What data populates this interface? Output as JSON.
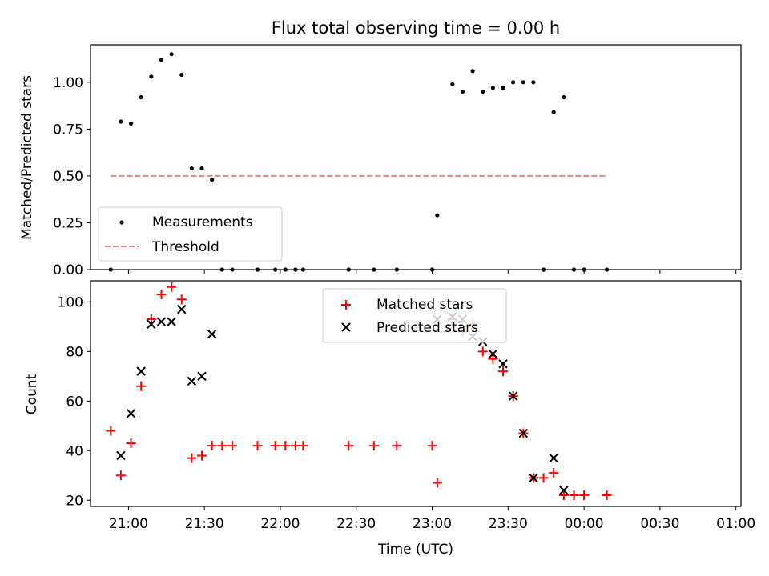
{
  "title": "Flux total observing time = 0.00 h",
  "chart_data": [
    {
      "type": "scatter",
      "ylabel": "Matched/Predicted stars",
      "xlabel": "",
      "ylim": [
        0,
        1.2
      ],
      "yticks": [
        0.0,
        0.25,
        0.5,
        0.75,
        1.0
      ],
      "ytick_labels": [
        "0.00",
        "0.25",
        "0.50",
        "0.75",
        "1.00"
      ],
      "legend": {
        "position": "lower-left",
        "entries": [
          "Measurements",
          "Threshold"
        ]
      },
      "series": [
        {
          "name": "Measurements",
          "marker": "dot",
          "color": "#000000",
          "points": [
            [
              "20:53",
              0.0
            ],
            [
              "20:57",
              0.79
            ],
            [
              "21:01",
              0.78
            ],
            [
              "21:05",
              0.92
            ],
            [
              "21:09",
              1.03
            ],
            [
              "21:13",
              1.12
            ],
            [
              "21:17",
              1.15
            ],
            [
              "21:21",
              1.04
            ],
            [
              "21:25",
              0.54
            ],
            [
              "21:29",
              0.54
            ],
            [
              "21:33",
              0.48
            ],
            [
              "21:37",
              0.0
            ],
            [
              "21:41",
              0.0
            ],
            [
              "21:51",
              0.0
            ],
            [
              "21:58",
              0.0
            ],
            [
              "22:02",
              0.0
            ],
            [
              "22:06",
              0.0
            ],
            [
              "22:09",
              0.0
            ],
            [
              "22:27",
              0.0
            ],
            [
              "22:37",
              0.0
            ],
            [
              "22:46",
              0.0
            ],
            [
              "23:00",
              0.0
            ],
            [
              "23:02",
              0.29
            ],
            [
              "23:08",
              0.99
            ],
            [
              "23:12",
              0.95
            ],
            [
              "23:16",
              1.06
            ],
            [
              "23:20",
              0.95
            ],
            [
              "23:24",
              0.97
            ],
            [
              "23:28",
              0.97
            ],
            [
              "23:32",
              1.0
            ],
            [
              "23:36",
              1.0
            ],
            [
              "23:40",
              1.0
            ],
            [
              "23:44",
              0.0
            ],
            [
              "23:48",
              0.84
            ],
            [
              "23:52",
              0.92
            ],
            [
              "23:56",
              0.0
            ],
            [
              "00:00",
              0.0
            ],
            [
              "00:09",
              0.0
            ]
          ]
        },
        {
          "name": "Threshold",
          "line_style": "dashed",
          "color": "#f08080",
          "points": [
            [
              "20:53",
              0.5
            ],
            [
              "00:09",
              0.5
            ]
          ]
        }
      ]
    },
    {
      "type": "scatter",
      "ylabel": "Count",
      "xlabel": "Time (UTC)",
      "ylim": [
        17.5,
        108.5
      ],
      "yticks": [
        20,
        40,
        60,
        80,
        100
      ],
      "ytick_labels": [
        "20",
        "40",
        "60",
        "80",
        "100"
      ],
      "xlim": [
        "20:45",
        "01:02"
      ],
      "xticks": [
        "21:00",
        "21:30",
        "22:00",
        "22:30",
        "23:00",
        "23:30",
        "00:00",
        "00:30",
        "01:00"
      ],
      "legend": {
        "position": "upper-center",
        "entries": [
          "Matched stars",
          "Predicted stars"
        ]
      },
      "series": [
        {
          "name": "Matched stars",
          "marker": "+",
          "color": "#ff0000",
          "points": [
            [
              "20:53",
              48
            ],
            [
              "20:57",
              30
            ],
            [
              "21:01",
              43
            ],
            [
              "21:05",
              66
            ],
            [
              "21:09",
              93
            ],
            [
              "21:13",
              103
            ],
            [
              "21:17",
              106
            ],
            [
              "21:21",
              101
            ],
            [
              "21:25",
              37
            ],
            [
              "21:29",
              38
            ],
            [
              "21:33",
              42
            ],
            [
              "21:37",
              42
            ],
            [
              "21:41",
              42
            ],
            [
              "21:51",
              42
            ],
            [
              "21:58",
              42
            ],
            [
              "22:02",
              42
            ],
            [
              "22:06",
              42
            ],
            [
              "22:09",
              42
            ],
            [
              "22:27",
              42
            ],
            [
              "22:37",
              42
            ],
            [
              "22:46",
              42
            ],
            [
              "23:00",
              42
            ],
            [
              "23:02",
              27
            ],
            [
              "23:08",
              93
            ],
            [
              "23:12",
              88
            ],
            [
              "23:16",
              91
            ],
            [
              "23:20",
              80
            ],
            [
              "23:24",
              77
            ],
            [
              "23:28",
              72
            ],
            [
              "23:32",
              62
            ],
            [
              "23:36",
              47
            ],
            [
              "23:40",
              29
            ],
            [
              "23:44",
              29
            ],
            [
              "23:48",
              31
            ],
            [
              "23:52",
              22
            ],
            [
              "23:56",
              22
            ],
            [
              "00:00",
              22
            ],
            [
              "00:09",
              22
            ]
          ]
        },
        {
          "name": "Predicted stars",
          "marker": "x",
          "color": "#000000",
          "points": [
            [
              "20:57",
              38
            ],
            [
              "21:01",
              55
            ],
            [
              "21:05",
              72
            ],
            [
              "21:09",
              91
            ],
            [
              "21:13",
              92
            ],
            [
              "21:17",
              92
            ],
            [
              "21:21",
              97
            ],
            [
              "21:25",
              68
            ],
            [
              "21:29",
              70
            ],
            [
              "21:33",
              87
            ],
            [
              "23:02",
              93
            ],
            [
              "23:08",
              94
            ],
            [
              "23:12",
              93
            ],
            [
              "23:16",
              86
            ],
            [
              "23:20",
              84
            ],
            [
              "23:24",
              79
            ],
            [
              "23:28",
              75
            ],
            [
              "23:32",
              62
            ],
            [
              "23:36",
              47
            ],
            [
              "23:40",
              29
            ],
            [
              "23:48",
              37
            ],
            [
              "23:52",
              24
            ]
          ]
        }
      ]
    }
  ]
}
